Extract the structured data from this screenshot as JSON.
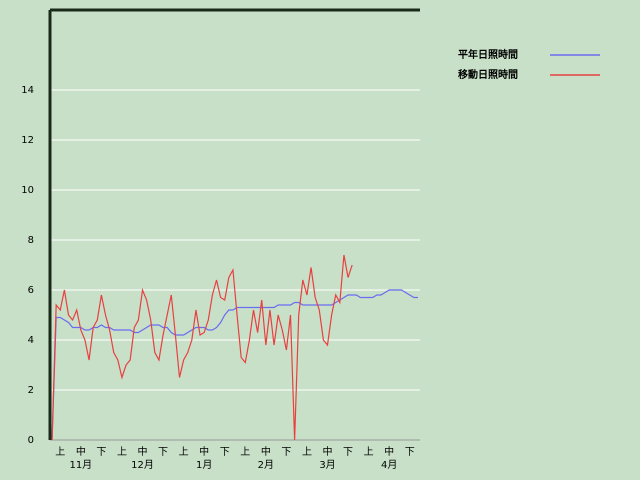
{
  "chart_data": {
    "type": "line",
    "categories": [
      null,
      null,
      "上",
      null,
      null,
      null,
      null,
      "中",
      null,
      null,
      null,
      null,
      "下",
      null,
      null,
      null,
      null,
      "上",
      null,
      null,
      null,
      null,
      "中",
      null,
      null,
      null,
      null,
      "下",
      null,
      null,
      null,
      null,
      "上",
      null,
      null,
      null,
      null,
      "中",
      null,
      null,
      null,
      null,
      "下",
      null,
      null,
      null,
      null,
      "上",
      null,
      null,
      null,
      null,
      "中",
      null,
      null,
      null,
      null,
      "下",
      null,
      null,
      null,
      null,
      "上",
      null,
      null,
      null,
      null,
      "中",
      null,
      null,
      null,
      null,
      "下",
      null,
      null,
      null,
      null,
      "上",
      null,
      null,
      null,
      null,
      "中",
      null,
      null,
      null,
      null,
      "下",
      null,
      null
    ],
    "months": [
      "11月",
      "12月",
      "1月",
      "2月",
      "3月",
      "4月"
    ],
    "series": [
      {
        "name": "平年日照時間",
        "color": "#6b6bf0",
        "values": [
          0,
          4.9,
          4.9,
          4.8,
          4.7,
          4.5,
          4.5,
          4.5,
          4.4,
          4.4,
          4.5,
          4.5,
          4.6,
          4.5,
          4.5,
          4.4,
          4.4,
          4.4,
          4.4,
          4.4,
          4.3,
          4.3,
          4.4,
          4.5,
          4.6,
          4.6,
          4.6,
          4.5,
          4.5,
          4.3,
          4.2,
          4.2,
          4.2,
          4.3,
          4.4,
          4.5,
          4.5,
          4.5,
          4.4,
          4.4,
          4.5,
          4.7,
          5.0,
          5.2,
          5.2,
          5.3,
          5.3,
          5.3,
          5.3,
          5.3,
          5.3,
          5.3,
          5.3,
          5.3,
          5.3,
          5.4,
          5.4,
          5.4,
          5.4,
          5.5,
          5.5,
          5.4,
          5.4,
          5.4,
          5.4,
          5.4,
          5.4,
          5.4,
          5.4,
          5.5,
          5.6,
          5.7,
          5.8,
          5.8,
          5.8,
          5.7,
          5.7,
          5.7,
          5.7,
          5.8,
          5.8,
          5.9,
          6.0,
          6.0,
          6.0,
          6.0,
          5.9,
          5.8,
          5.7,
          5.7
        ]
      },
      {
        "name": "移動日照時間",
        "color": "#e84040",
        "values": [
          0,
          5.4,
          5.2,
          6.0,
          5.0,
          4.8,
          5.2,
          4.4,
          4.0,
          3.2,
          4.5,
          4.8,
          5.8,
          5.0,
          4.4,
          3.5,
          3.2,
          2.5,
          3.0,
          3.2,
          4.5,
          4.8,
          6.0,
          5.6,
          4.8,
          3.5,
          3.2,
          4.2,
          5.0,
          5.8,
          4.2,
          2.5,
          3.2,
          3.5,
          4.0,
          5.2,
          4.2,
          4.3,
          4.8,
          5.8,
          6.4,
          5.7,
          5.6,
          6.5,
          6.8,
          5.0,
          3.3,
          3.1,
          4.0,
          5.2,
          4.3,
          5.6,
          3.8,
          5.2,
          3.8,
          5.0,
          4.4,
          3.6,
          5.0,
          0,
          5.0,
          6.4,
          5.8,
          6.9,
          5.7,
          5.2,
          4.0,
          3.8,
          5.0,
          5.8,
          5.5,
          7.4,
          6.5,
          7.0,
          null,
          null,
          null,
          null,
          null,
          null,
          null,
          null,
          null,
          null,
          null,
          null,
          null,
          null,
          null,
          null
        ]
      }
    ],
    "ylim": [
      0,
      17.2
    ],
    "yticks": [
      0,
      2,
      4,
      6,
      8,
      10,
      12,
      14
    ],
    "grid": true,
    "legend": "top-right"
  }
}
